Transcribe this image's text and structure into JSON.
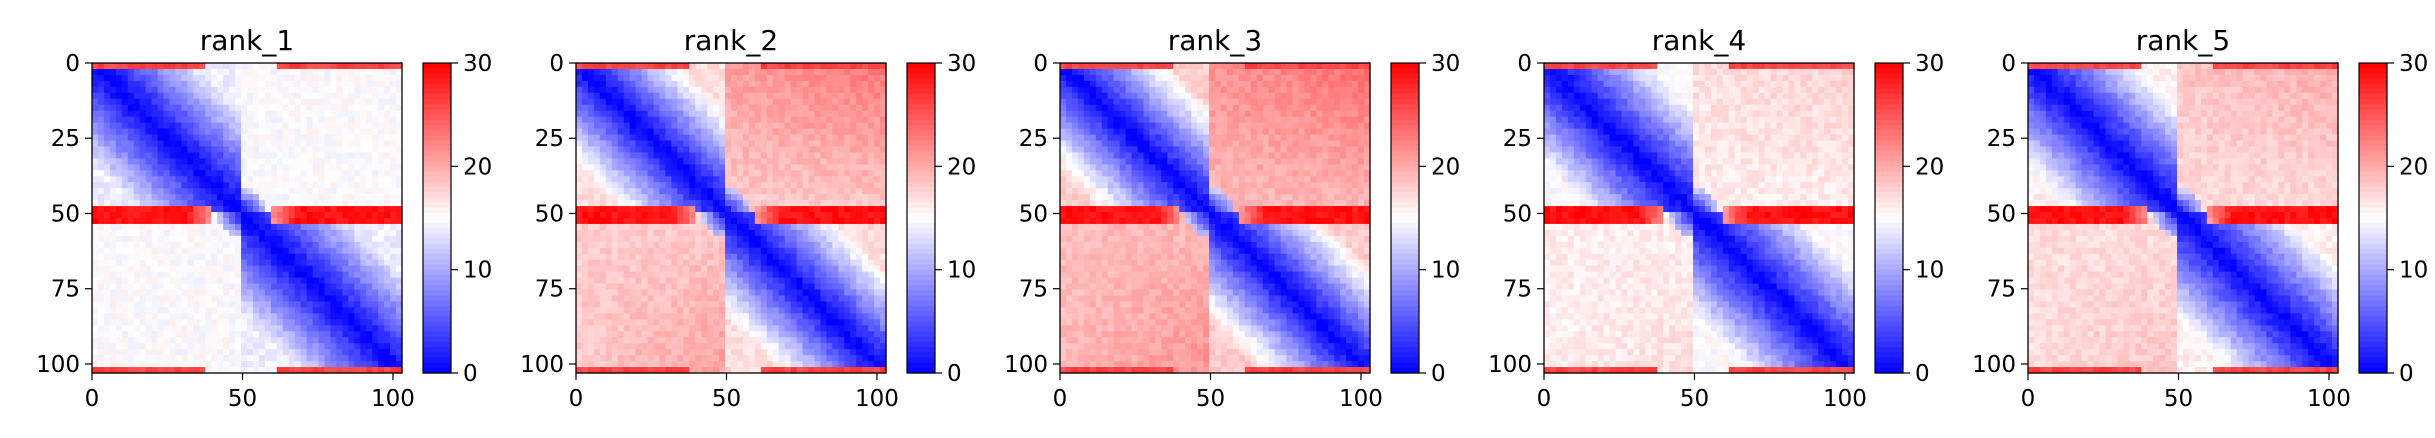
{
  "chart_data": [
    {
      "type": "heatmap",
      "title": "rank_1",
      "xticks": [
        0,
        50,
        100
      ],
      "yticks": [
        0,
        25,
        50,
        75,
        100
      ],
      "xlim": [
        0,
        103
      ],
      "ylim": [
        103,
        0
      ],
      "colorbar": {
        "ticks": [
          0,
          10,
          20,
          30
        ],
        "range": [
          0,
          30
        ],
        "colormap": "bwr"
      },
      "features": {
        "diag_strength": 1.0,
        "offblock": 15,
        "band_row": 51,
        "band_value": 29,
        "right_gradient": 0.0,
        "edge_value": 26
      }
    },
    {
      "type": "heatmap",
      "title": "rank_2",
      "xticks": [
        0,
        50,
        100
      ],
      "yticks": [
        0,
        25,
        50,
        75,
        100
      ],
      "xlim": [
        0,
        103
      ],
      "ylim": [
        103,
        0
      ],
      "colorbar": {
        "ticks": [
          0,
          10,
          20,
          30
        ],
        "range": [
          0,
          30
        ],
        "colormap": "bwr"
      },
      "features": {
        "diag_strength": 0.85,
        "offblock": 18,
        "band_row": 51,
        "band_value": 29,
        "right_gradient": 0.9,
        "edge_value": 26
      }
    },
    {
      "type": "heatmap",
      "title": "rank_3",
      "xticks": [
        0,
        50,
        100
      ],
      "yticks": [
        0,
        25,
        50,
        75,
        100
      ],
      "xlim": [
        0,
        103
      ],
      "ylim": [
        103,
        0
      ],
      "colorbar": {
        "ticks": [
          0,
          10,
          20,
          30
        ],
        "range": [
          0,
          30
        ],
        "colormap": "bwr"
      },
      "features": {
        "diag_strength": 0.85,
        "offblock": 19,
        "band_row": 51,
        "band_value": 29,
        "right_gradient": 0.8,
        "edge_value": 26
      }
    },
    {
      "type": "heatmap",
      "title": "rank_4",
      "xticks": [
        0,
        50,
        100
      ],
      "yticks": [
        0,
        25,
        50,
        75,
        100
      ],
      "xlim": [
        0,
        103
      ],
      "ylim": [
        103,
        0
      ],
      "colorbar": {
        "ticks": [
          0,
          10,
          20,
          30
        ],
        "range": [
          0,
          30
        ],
        "colormap": "bwr"
      },
      "features": {
        "diag_strength": 0.95,
        "offblock": 16,
        "band_row": 51,
        "band_value": 29,
        "right_gradient": 0.3,
        "edge_value": 26
      }
    },
    {
      "type": "heatmap",
      "title": "rank_5",
      "xticks": [
        0,
        50,
        100
      ],
      "yticks": [
        0,
        25,
        50,
        75,
        100
      ],
      "xlim": [
        0,
        103
      ],
      "ylim": [
        103,
        0
      ],
      "colorbar": {
        "ticks": [
          0,
          10,
          20,
          30
        ],
        "range": [
          0,
          30
        ],
        "colormap": "bwr"
      },
      "features": {
        "diag_strength": 0.95,
        "offblock": 17,
        "band_row": 51,
        "band_value": 29,
        "right_gradient": 0.5,
        "edge_value": 26
      }
    }
  ]
}
